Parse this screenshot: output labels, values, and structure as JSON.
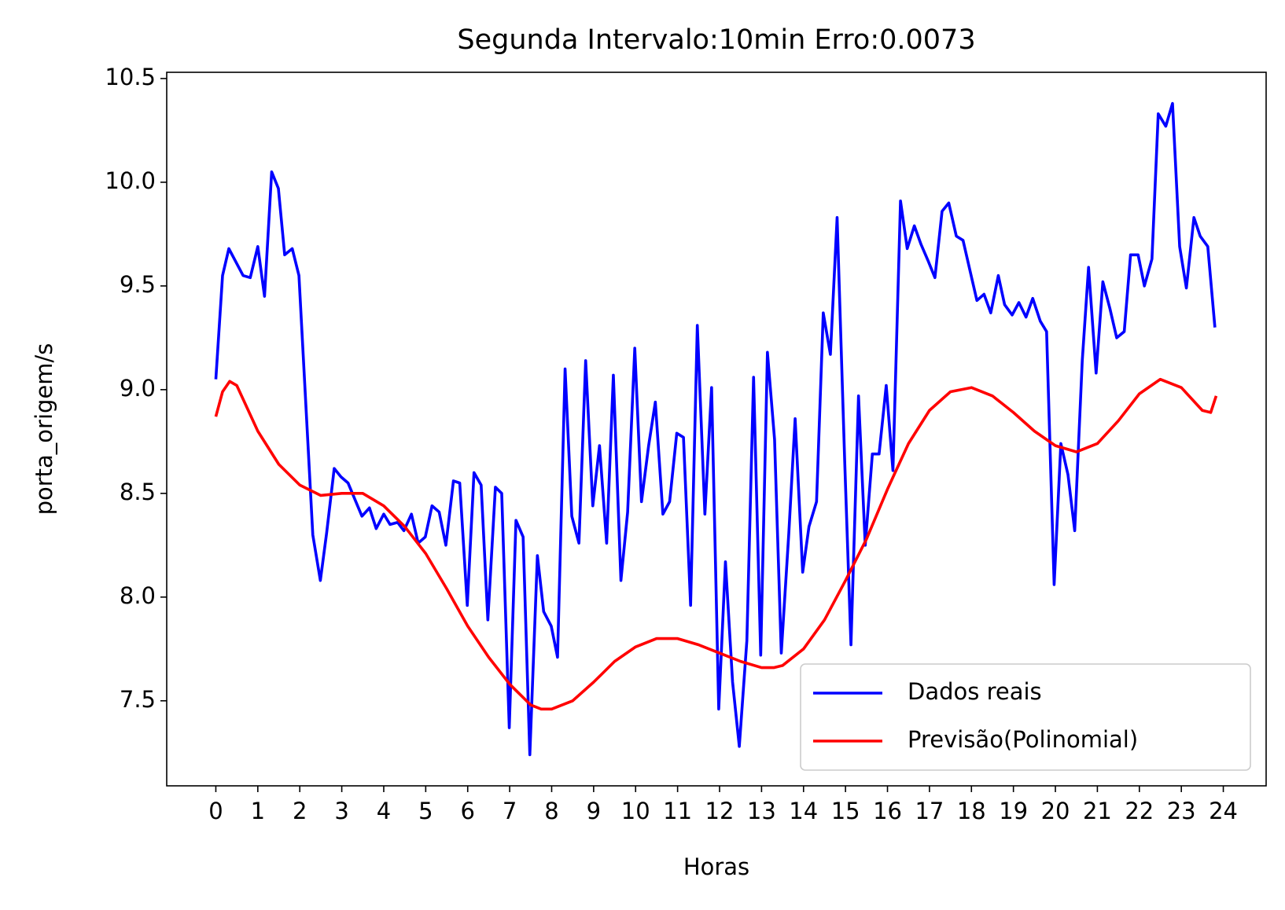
{
  "chart_data": {
    "type": "line",
    "title": "Segunda Intervalo:10min Erro:0.0073",
    "xlabel": "Horas",
    "ylabel": "porta_origem/s",
    "xlim": [
      -1.17,
      25.02
    ],
    "ylim": [
      7.09,
      10.53
    ],
    "xticks": [
      0,
      1,
      2,
      3,
      4,
      5,
      6,
      7,
      8,
      9,
      10,
      11,
      12,
      13,
      14,
      15,
      16,
      17,
      18,
      19,
      20,
      21,
      22,
      23,
      24
    ],
    "yticks": [
      7.5,
      {
        "value": 8.0,
        "label": "8.0"
      },
      8.5,
      {
        "value": 9.0,
        "label": "9.0"
      },
      9.5,
      {
        "value": 10.0,
        "label": "10.0"
      },
      10.5
    ],
    "grid": false,
    "legend": "lower right",
    "series": [
      {
        "name": "Dados reais",
        "color": "#0000ff",
        "x": [
          0,
          0.16,
          0.31,
          0.65,
          0.82,
          1.0,
          1.16,
          1.33,
          1.49,
          1.64,
          1.82,
          1.98,
          2.31,
          2.49,
          2.64,
          2.82,
          2.98,
          3.15,
          3.48,
          3.66,
          3.82,
          4.0,
          4.15,
          4.33,
          4.48,
          4.66,
          4.82,
          4.99,
          5.15,
          5.32,
          5.48,
          5.66,
          5.81,
          5.99,
          6.15,
          6.32,
          6.48,
          6.66,
          6.81,
          6.99,
          7.15,
          7.32,
          7.48,
          7.66,
          7.81,
          7.99,
          8.14,
          8.32,
          8.48,
          8.65,
          8.81,
          8.98,
          9.14,
          9.31,
          9.47,
          9.65,
          9.81,
          9.98,
          10.14,
          10.31,
          10.47,
          10.65,
          10.81,
          10.98,
          11.14,
          11.31,
          11.47,
          11.65,
          11.81,
          11.98,
          12.14,
          12.31,
          12.47,
          12.65,
          12.81,
          12.98,
          13.14,
          13.31,
          13.47,
          13.65,
          13.8,
          13.98,
          14.13,
          14.31,
          14.47,
          14.64,
          14.8,
          14.98,
          15.13,
          15.31,
          15.47,
          15.64,
          15.8,
          15.97,
          16.13,
          16.31,
          16.47,
          16.64,
          16.8,
          16.97,
          17.13,
          17.3,
          17.46,
          17.64,
          17.8,
          17.97,
          18.13,
          18.3,
          18.46,
          18.64,
          18.79,
          18.97,
          19.13,
          19.3,
          19.46,
          19.64,
          19.79,
          19.97,
          20.13,
          20.3,
          20.46,
          20.64,
          20.79,
          20.97,
          21.13,
          21.3,
          21.46,
          21.64,
          21.79,
          21.97,
          22.12,
          22.3,
          22.45,
          22.63,
          22.79,
          22.96,
          23.12,
          23.3,
          23.45,
          23.63,
          23.8
        ],
        "values": [
          9.05,
          9.55,
          9.68,
          9.55,
          9.54,
          9.69,
          9.45,
          10.05,
          9.97,
          9.65,
          9.68,
          9.55,
          8.3,
          8.08,
          8.31,
          8.62,
          8.58,
          8.55,
          8.39,
          8.43,
          8.33,
          8.4,
          8.35,
          8.36,
          8.32,
          8.4,
          8.26,
          8.29,
          8.44,
          8.41,
          8.25,
          8.56,
          8.55,
          7.96,
          8.6,
          8.54,
          7.89,
          8.53,
          8.5,
          7.37,
          8.37,
          8.29,
          7.24,
          8.2,
          7.93,
          7.86,
          7.71,
          9.1,
          8.39,
          8.26,
          9.14,
          8.44,
          8.73,
          8.26,
          9.07,
          8.08,
          8.41,
          9.2,
          8.46,
          8.73,
          8.94,
          8.4,
          8.46,
          8.79,
          8.77,
          7.96,
          9.31,
          8.4,
          9.01,
          7.46,
          8.17,
          7.59,
          7.28,
          7.79,
          9.06,
          7.72,
          9.18,
          8.76,
          7.73,
          8.31,
          8.86,
          8.12,
          8.34,
          8.46,
          9.37,
          9.17,
          9.83,
          8.66,
          7.77,
          8.97,
          8.25,
          8.69,
          8.69,
          9.02,
          8.61,
          9.91,
          9.68,
          9.79,
          9.7,
          9.62,
          9.54,
          9.86,
          9.9,
          9.74,
          9.72,
          9.57,
          9.43,
          9.46,
          9.37,
          9.55,
          9.41,
          9.36,
          9.42,
          9.35,
          9.44,
          9.33,
          9.28,
          8.06,
          8.74,
          8.59,
          8.32,
          9.14,
          9.59,
          9.08,
          9.52,
          9.39,
          9.25,
          9.28,
          9.65,
          9.65,
          9.5,
          9.63,
          10.33,
          10.27,
          10.38,
          9.69,
          9.49,
          9.83,
          9.74,
          9.69,
          9.3
        ]
      },
      {
        "name": "Previsão(Polinomial)",
        "color": "#ff0000",
        "x": [
          0,
          0.16,
          0.33,
          0.5,
          1,
          1.5,
          2,
          2.5,
          3,
          3.5,
          4,
          4.5,
          5,
          5.5,
          6,
          6.5,
          7,
          7.5,
          7.75,
          8,
          8.5,
          9,
          9.5,
          10,
          10.5,
          11,
          11.5,
          12,
          12.5,
          13,
          13.3,
          13.5,
          14,
          14.5,
          15,
          15.5,
          16,
          16.5,
          17,
          17.5,
          18,
          18.5,
          19,
          19.5,
          20,
          20.5,
          21,
          21.5,
          22,
          22.5,
          23,
          23.5,
          23.7,
          23.83
        ],
        "values": [
          8.87,
          8.99,
          9.04,
          9.02,
          8.8,
          8.64,
          8.54,
          8.49,
          8.5,
          8.5,
          8.44,
          8.34,
          8.21,
          8.04,
          7.86,
          7.71,
          7.58,
          7.48,
          7.46,
          7.46,
          7.5,
          7.59,
          7.69,
          7.76,
          7.8,
          7.8,
          7.77,
          7.73,
          7.69,
          7.66,
          7.66,
          7.67,
          7.75,
          7.89,
          8.08,
          8.28,
          8.52,
          8.74,
          8.9,
          8.99,
          9.01,
          8.97,
          8.89,
          8.8,
          8.73,
          8.7,
          8.74,
          8.85,
          8.98,
          9.05,
          9.01,
          8.9,
          8.89,
          8.97
        ]
      }
    ]
  }
}
